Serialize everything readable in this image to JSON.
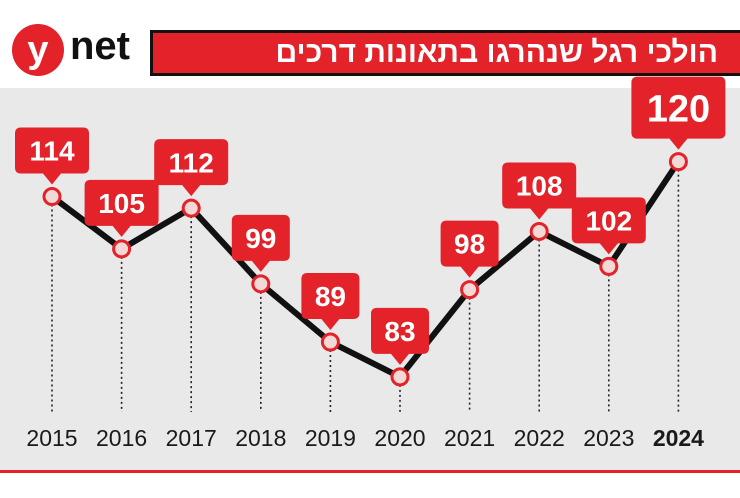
{
  "header": {
    "logo_letter": "y",
    "logo_word": "net",
    "title": "הולכי רגל שנהרגו בתאונות דרכים"
  },
  "colors": {
    "accent": "#e3222a",
    "line": "#111111",
    "background": "#e9e9ea"
  },
  "chart_data": {
    "type": "line",
    "categories": [
      "2015",
      "2016",
      "2017",
      "2018",
      "2019",
      "2020",
      "2021",
      "2022",
      "2023",
      "2024"
    ],
    "values": [
      114,
      105,
      112,
      99,
      89,
      83,
      98,
      108,
      102,
      120
    ],
    "highlight_category": "2024",
    "title": "הולכי רגל שנהרגו בתאונות דרכים",
    "xlabel": "",
    "ylabel": "",
    "ylim": [
      78,
      122
    ],
    "grid": false,
    "legend": "none"
  }
}
